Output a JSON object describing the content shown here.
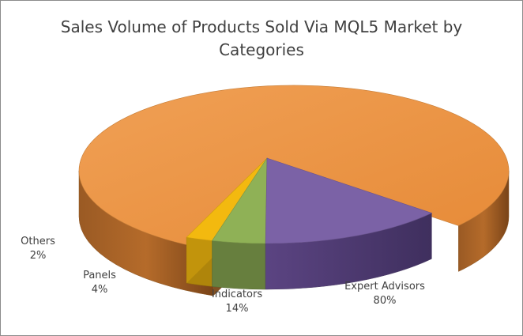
{
  "chart_data": {
    "type": "pie",
    "title_lines": [
      "Sales Volume of Products Sold Via MQL5 Market by",
      "Categories"
    ],
    "categories": [
      "Expert Advisors",
      "Indicators",
      "Panels",
      "Others"
    ],
    "values": [
      80,
      14,
      4,
      2
    ],
    "value_labels": [
      "80%",
      "14%",
      "4%",
      "2%"
    ],
    "colors": [
      "#E8923F",
      "#7B62A6",
      "#8FB156",
      "#F3B90F"
    ],
    "exploded": "Expert Advisors",
    "legend": "none"
  }
}
